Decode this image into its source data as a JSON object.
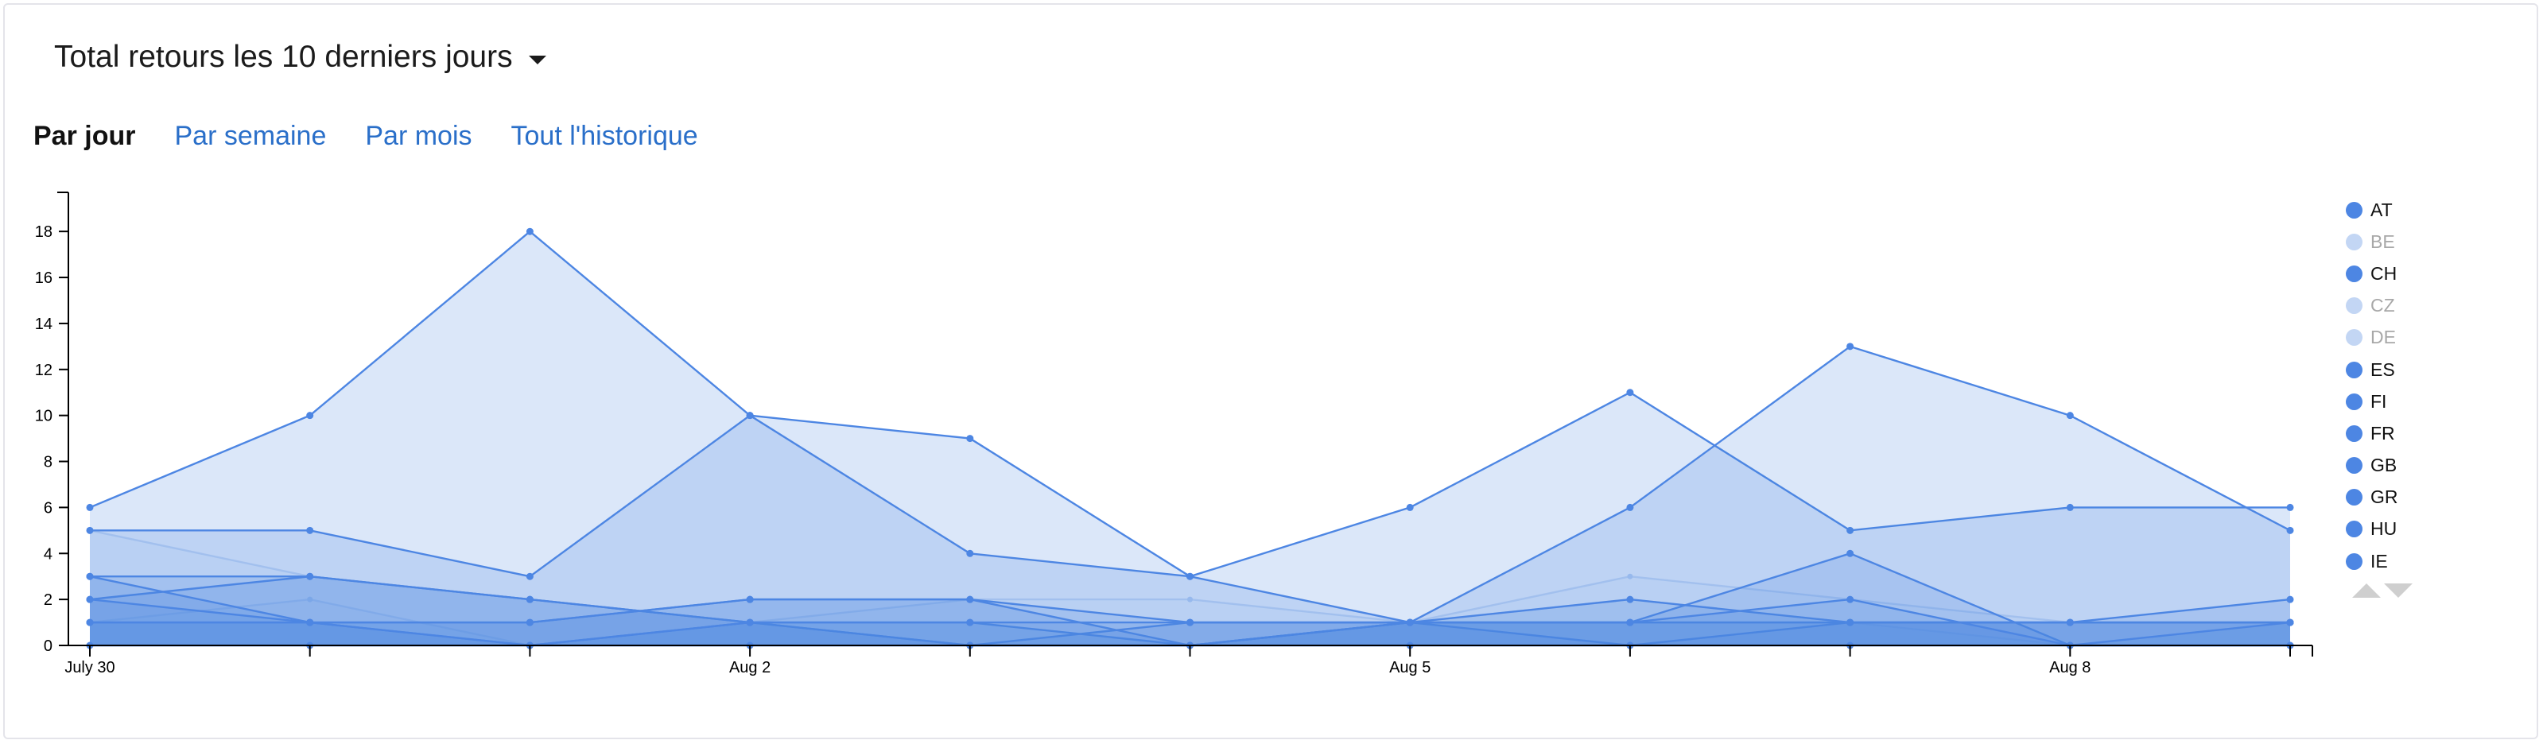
{
  "header": {
    "title": "Total retours les 10 derniers jours"
  },
  "tabs": [
    {
      "label": "Par jour",
      "active": true
    },
    {
      "label": "Par semaine",
      "active": false
    },
    {
      "label": "Par mois",
      "active": false
    },
    {
      "label": "Tout l'historique",
      "active": false
    }
  ],
  "colors": {
    "series": "#4d86e3",
    "series_off": "#c3d6f4",
    "axis": "#000000"
  },
  "chart_data": {
    "type": "area",
    "title": "",
    "xlabel": "",
    "ylabel": "",
    "ylim": [
      0,
      19.7
    ],
    "yticks": [
      0,
      2,
      4,
      6,
      8,
      10,
      12,
      14,
      16,
      18
    ],
    "x": [
      "July 30",
      "July 31",
      "Aug 1",
      "Aug 2",
      "Aug 3",
      "Aug 4",
      "Aug 5",
      "Aug 6",
      "Aug 7",
      "Aug 8",
      "Aug 9"
    ],
    "x_tick_labels": [
      "July 30",
      "",
      "",
      "Aug 2",
      "",
      "",
      "Aug 5",
      "",
      "",
      "Aug 8",
      ""
    ],
    "legend_position": "right",
    "series": [
      {
        "name": "AT",
        "visible": true,
        "values": [
          5,
          5,
          3,
          10,
          4,
          3,
          1,
          6,
          13,
          10,
          5
        ]
      },
      {
        "name": "BE",
        "visible": false,
        "values": [
          1,
          2,
          0,
          1,
          2,
          2,
          1,
          3,
          2,
          1,
          1
        ]
      },
      {
        "name": "CH",
        "visible": true,
        "values": [
          3,
          3,
          2,
          1,
          1,
          0,
          1,
          1,
          1,
          1,
          1
        ]
      },
      {
        "name": "CZ",
        "visible": false,
        "values": [
          0,
          0,
          0,
          0,
          0,
          0,
          0,
          0,
          0,
          0,
          0
        ]
      },
      {
        "name": "DE",
        "visible": false,
        "values": [
          5,
          3,
          2,
          1,
          1,
          0,
          1,
          2,
          1,
          0,
          1
        ]
      },
      {
        "name": "ES",
        "visible": true,
        "values": [
          2,
          3,
          2,
          1,
          0,
          1,
          1,
          1,
          1,
          1,
          1
        ]
      },
      {
        "name": "FI",
        "visible": true,
        "values": [
          0,
          0,
          0,
          0,
          0,
          0,
          0,
          0,
          0,
          0,
          0
        ]
      },
      {
        "name": "FR",
        "visible": true,
        "values": [
          6,
          10,
          18,
          10,
          9,
          3,
          6,
          11,
          5,
          6,
          6
        ]
      },
      {
        "name": "GB",
        "visible": true,
        "values": [
          2,
          1,
          1,
          2,
          2,
          0,
          1,
          2,
          1,
          1,
          2
        ]
      },
      {
        "name": "GR",
        "visible": true,
        "values": [
          1,
          1,
          0,
          1,
          1,
          1,
          1,
          1,
          2,
          0,
          1
        ]
      },
      {
        "name": "HU",
        "visible": true,
        "values": [
          3,
          1,
          0,
          1,
          0,
          0,
          1,
          0,
          1,
          1,
          1
        ]
      },
      {
        "name": "IE",
        "visible": true,
        "values": [
          1,
          1,
          1,
          2,
          2,
          1,
          1,
          1,
          4,
          0,
          0
        ]
      }
    ]
  }
}
